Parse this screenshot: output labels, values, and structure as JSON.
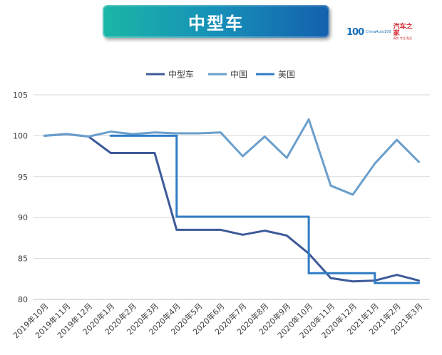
{
  "title": "中型车",
  "logo": {
    "mark": "100",
    "sub": "ChinaAuto100",
    "brand": "汽车之家",
    "tag": "真实 专业 贴近"
  },
  "chart_data": {
    "type": "line",
    "title": "中型车",
    "categories": [
      "2019年10月",
      "2019年11月",
      "2019年12月",
      "2020年1月",
      "2020年2月",
      "2020年3月",
      "2020年4月",
      "2020年5月",
      "2020年6月",
      "2020年7月",
      "2020年8月",
      "2020年9月",
      "2020年10月",
      "2020年11月",
      "2020年12月",
      "2021年1月",
      "2021年2月",
      "2021年3月"
    ],
    "ylim": [
      80,
      105
    ],
    "yticks": [
      80,
      85,
      90,
      95,
      100,
      105
    ],
    "grid": true,
    "legend_position": "top-center",
    "series": [
      {
        "name": "中型车",
        "color": "#3d5a99",
        "values": [
          100.0,
          100.2,
          99.9,
          97.9,
          97.9,
          97.9,
          88.5,
          88.5,
          88.5,
          87.9,
          88.4,
          87.8,
          85.6,
          82.6,
          82.2,
          82.3,
          83.0,
          82.3
        ]
      },
      {
        "name": "中国",
        "color": "#6a9fcc",
        "values": [
          100.0,
          100.2,
          99.9,
          100.5,
          100.2,
          100.4,
          100.3,
          100.3,
          100.4,
          97.5,
          99.9,
          97.3,
          102.0,
          93.9,
          92.8,
          96.6,
          99.5,
          96.8
        ]
      },
      {
        "name": "美国",
        "color": "#2f7cc4",
        "values": [
          null,
          null,
          null,
          100.0,
          100.0,
          100.0,
          90.1,
          90.1,
          90.1,
          90.1,
          90.1,
          90.1,
          83.2,
          83.2,
          83.2,
          82.0,
          82.0,
          82.0
        ],
        "step": true
      }
    ]
  }
}
